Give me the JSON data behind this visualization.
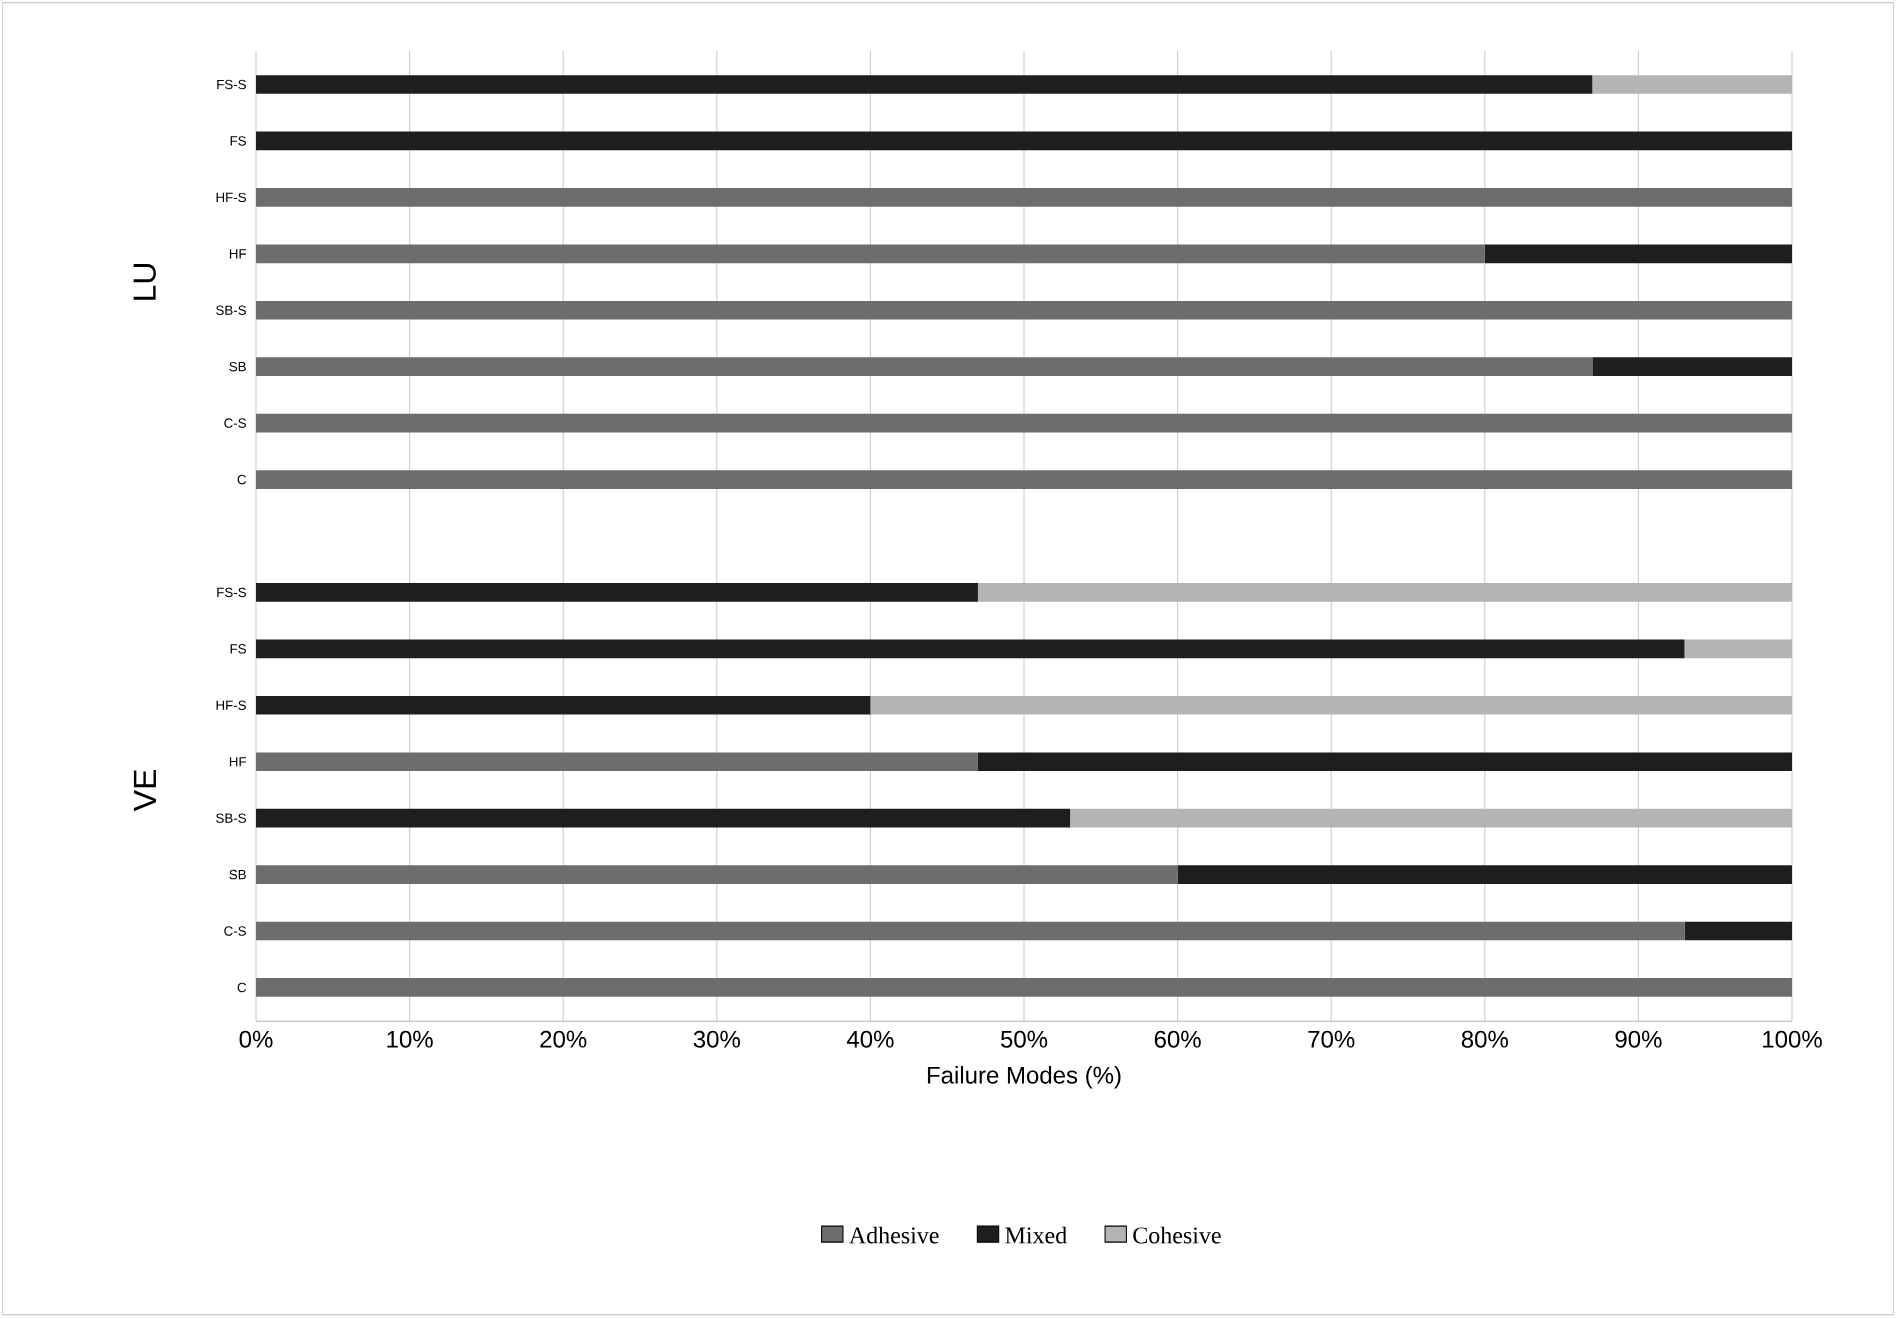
{
  "chart_data": {
    "type": "bar",
    "orientation": "horizontal",
    "stacked": true,
    "xlabel": "Failure Modes (%)",
    "categories": [
      "FS-S",
      "FS",
      "HF-S",
      "HF",
      "SB-S",
      "SB",
      "C-S",
      "C",
      null,
      "FS-S",
      "FS",
      "HF-S",
      "HF",
      "SB-S",
      "SB",
      "C-S",
      "C"
    ],
    "series": [
      {
        "name": "Adhesive",
        "color": "#6d6d6d",
        "values": [
          0,
          0,
          100,
          80,
          100,
          87,
          100,
          100,
          null,
          0,
          0,
          0,
          47,
          0,
          60,
          93,
          100
        ]
      },
      {
        "name": "Mixed",
        "color": "#1e1e1e",
        "values": [
          87,
          100,
          0,
          20,
          0,
          13,
          0,
          0,
          null,
          47,
          93,
          40,
          53,
          53,
          40,
          7,
          0
        ]
      },
      {
        "name": "Cohesive",
        "color": "#b4b4b4",
        "values": [
          13,
          0,
          0,
          0,
          0,
          0,
          0,
          0,
          null,
          53,
          7,
          60,
          0,
          47,
          0,
          0,
          0
        ]
      }
    ],
    "xlim": [
      0,
      100
    ],
    "xticks": [
      {
        "value": 0,
        "label": "0%"
      },
      {
        "value": 10,
        "label": "10%"
      },
      {
        "value": 20,
        "label": "20%"
      },
      {
        "value": 30,
        "label": "30%"
      },
      {
        "value": 40,
        "label": "40%"
      },
      {
        "value": 50,
        "label": "50%"
      },
      {
        "value": 60,
        "label": "60%"
      },
      {
        "value": 70,
        "label": "70%"
      },
      {
        "value": 80,
        "label": "80%"
      },
      {
        "value": 90,
        "label": "90%"
      },
      {
        "value": 100,
        "label": "100%"
      }
    ],
    "grid": "x",
    "legend": "bottom",
    "annotations": [
      "LU",
      "VE"
    ]
  }
}
